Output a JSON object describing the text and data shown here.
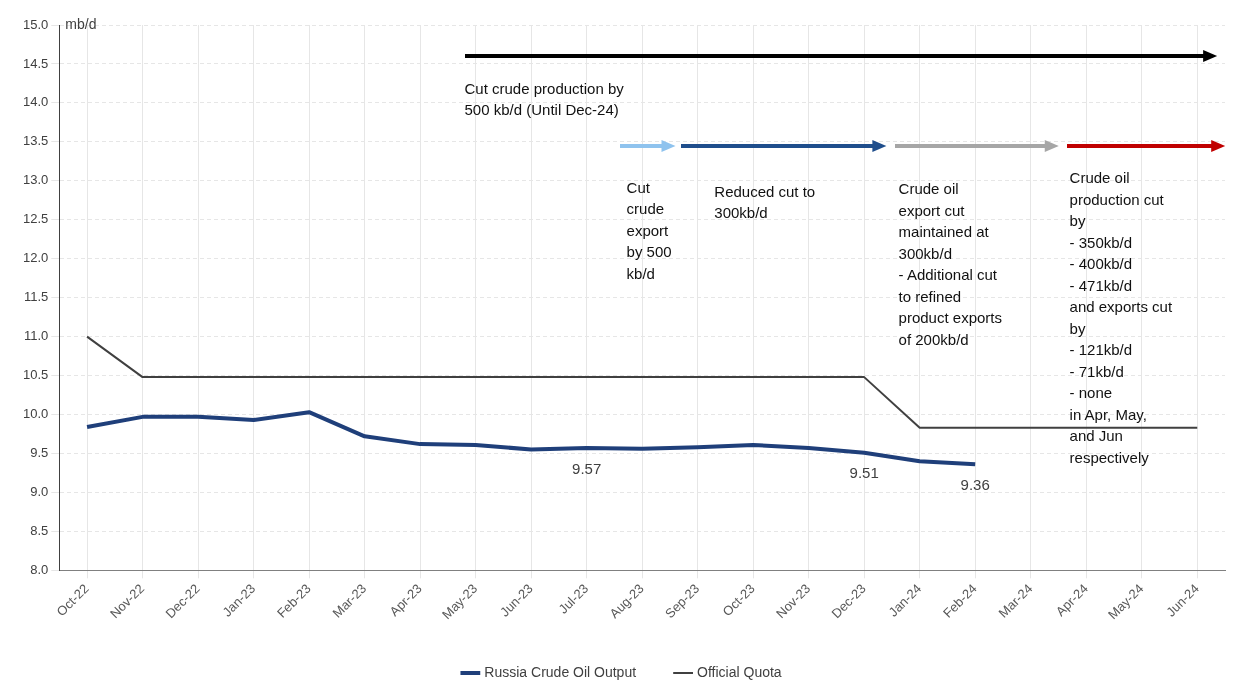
{
  "chart_data": {
    "type": "line",
    "ylabel": "mb/d",
    "categories": [
      "Oct-22",
      "Nov-22",
      "Dec-22",
      "Jan-23",
      "Feb-23",
      "Mar-23",
      "Apr-23",
      "May-23",
      "Jun-23",
      "Jul-23",
      "Aug-23",
      "Sep-23",
      "Oct-23",
      "Nov-23",
      "Dec-23",
      "Jan-24",
      "Feb-24",
      "Mar-24",
      "Apr-24",
      "May-24",
      "Jun-24"
    ],
    "series": [
      {
        "name": "Russia Crude Oil Output",
        "color": "#1f3f7a",
        "values": [
          9.84,
          9.97,
          9.97,
          9.93,
          10.03,
          9.72,
          9.62,
          9.61,
          9.55,
          9.57,
          9.56,
          9.58,
          9.61,
          9.57,
          9.51,
          9.4,
          9.36,
          null,
          null,
          null,
          null
        ],
        "value_labels": [
          null,
          null,
          null,
          null,
          null,
          null,
          null,
          null,
          null,
          "9.57",
          null,
          null,
          null,
          null,
          "9.51",
          null,
          "9.36",
          null,
          null,
          null,
          null
        ]
      },
      {
        "name": "Official Quota",
        "color": "#404040",
        "values": [
          11.0,
          10.48,
          10.48,
          10.48,
          10.48,
          10.48,
          10.48,
          10.48,
          10.48,
          10.48,
          10.48,
          10.48,
          10.48,
          10.48,
          10.48,
          9.83,
          9.83,
          9.83,
          9.83,
          9.83,
          9.83
        ]
      }
    ],
    "ylim": [
      8,
      15
    ],
    "yticks": [
      {
        "value": 8,
        "label": "8.0"
      },
      {
        "value": 8.5,
        "label": "8.5"
      },
      {
        "value": 9,
        "label": "9.0"
      },
      {
        "value": 9.5,
        "label": "9.5"
      },
      {
        "value": 10,
        "label": "10.0"
      },
      {
        "value": 10.5,
        "label": "10.5"
      },
      {
        "value": 11,
        "label": "11.0"
      },
      {
        "value": 11.5,
        "label": "11.5"
      },
      {
        "value": 12,
        "label": "12.0"
      },
      {
        "value": 12.5,
        "label": "12.5"
      },
      {
        "value": 13,
        "label": "13.0"
      },
      {
        "value": 13.5,
        "label": "13.5"
      },
      {
        "value": 14,
        "label": "14.0"
      },
      {
        "value": 14.5,
        "label": "14.5"
      },
      {
        "value": 15,
        "label": "15.0"
      }
    ],
    "grid": true,
    "legend": "bottom",
    "marker": "none",
    "line_style": "solid",
    "annotations": [
      "Cut crude production by\n500 kb/d (Until Dec-24)",
      "Cut\ncrude\nexport\nby 500\nkb/d",
      "Reduced cut to\n300kb/d",
      "Crude oil\nexport cut\nmaintained at\n300kb/d\n- Additional cut\nto refined\nproduct exports\nof 200kb/d",
      "Crude oil\nproduction cut\nby\n- 350kb/d\n- 400kb/d\n- 471kb/d\nand exports cut\nby\n- 121kb/d\n- 71kb/d\n- none\nin Apr, May,\nand Jun\nrespectively"
    ]
  }
}
